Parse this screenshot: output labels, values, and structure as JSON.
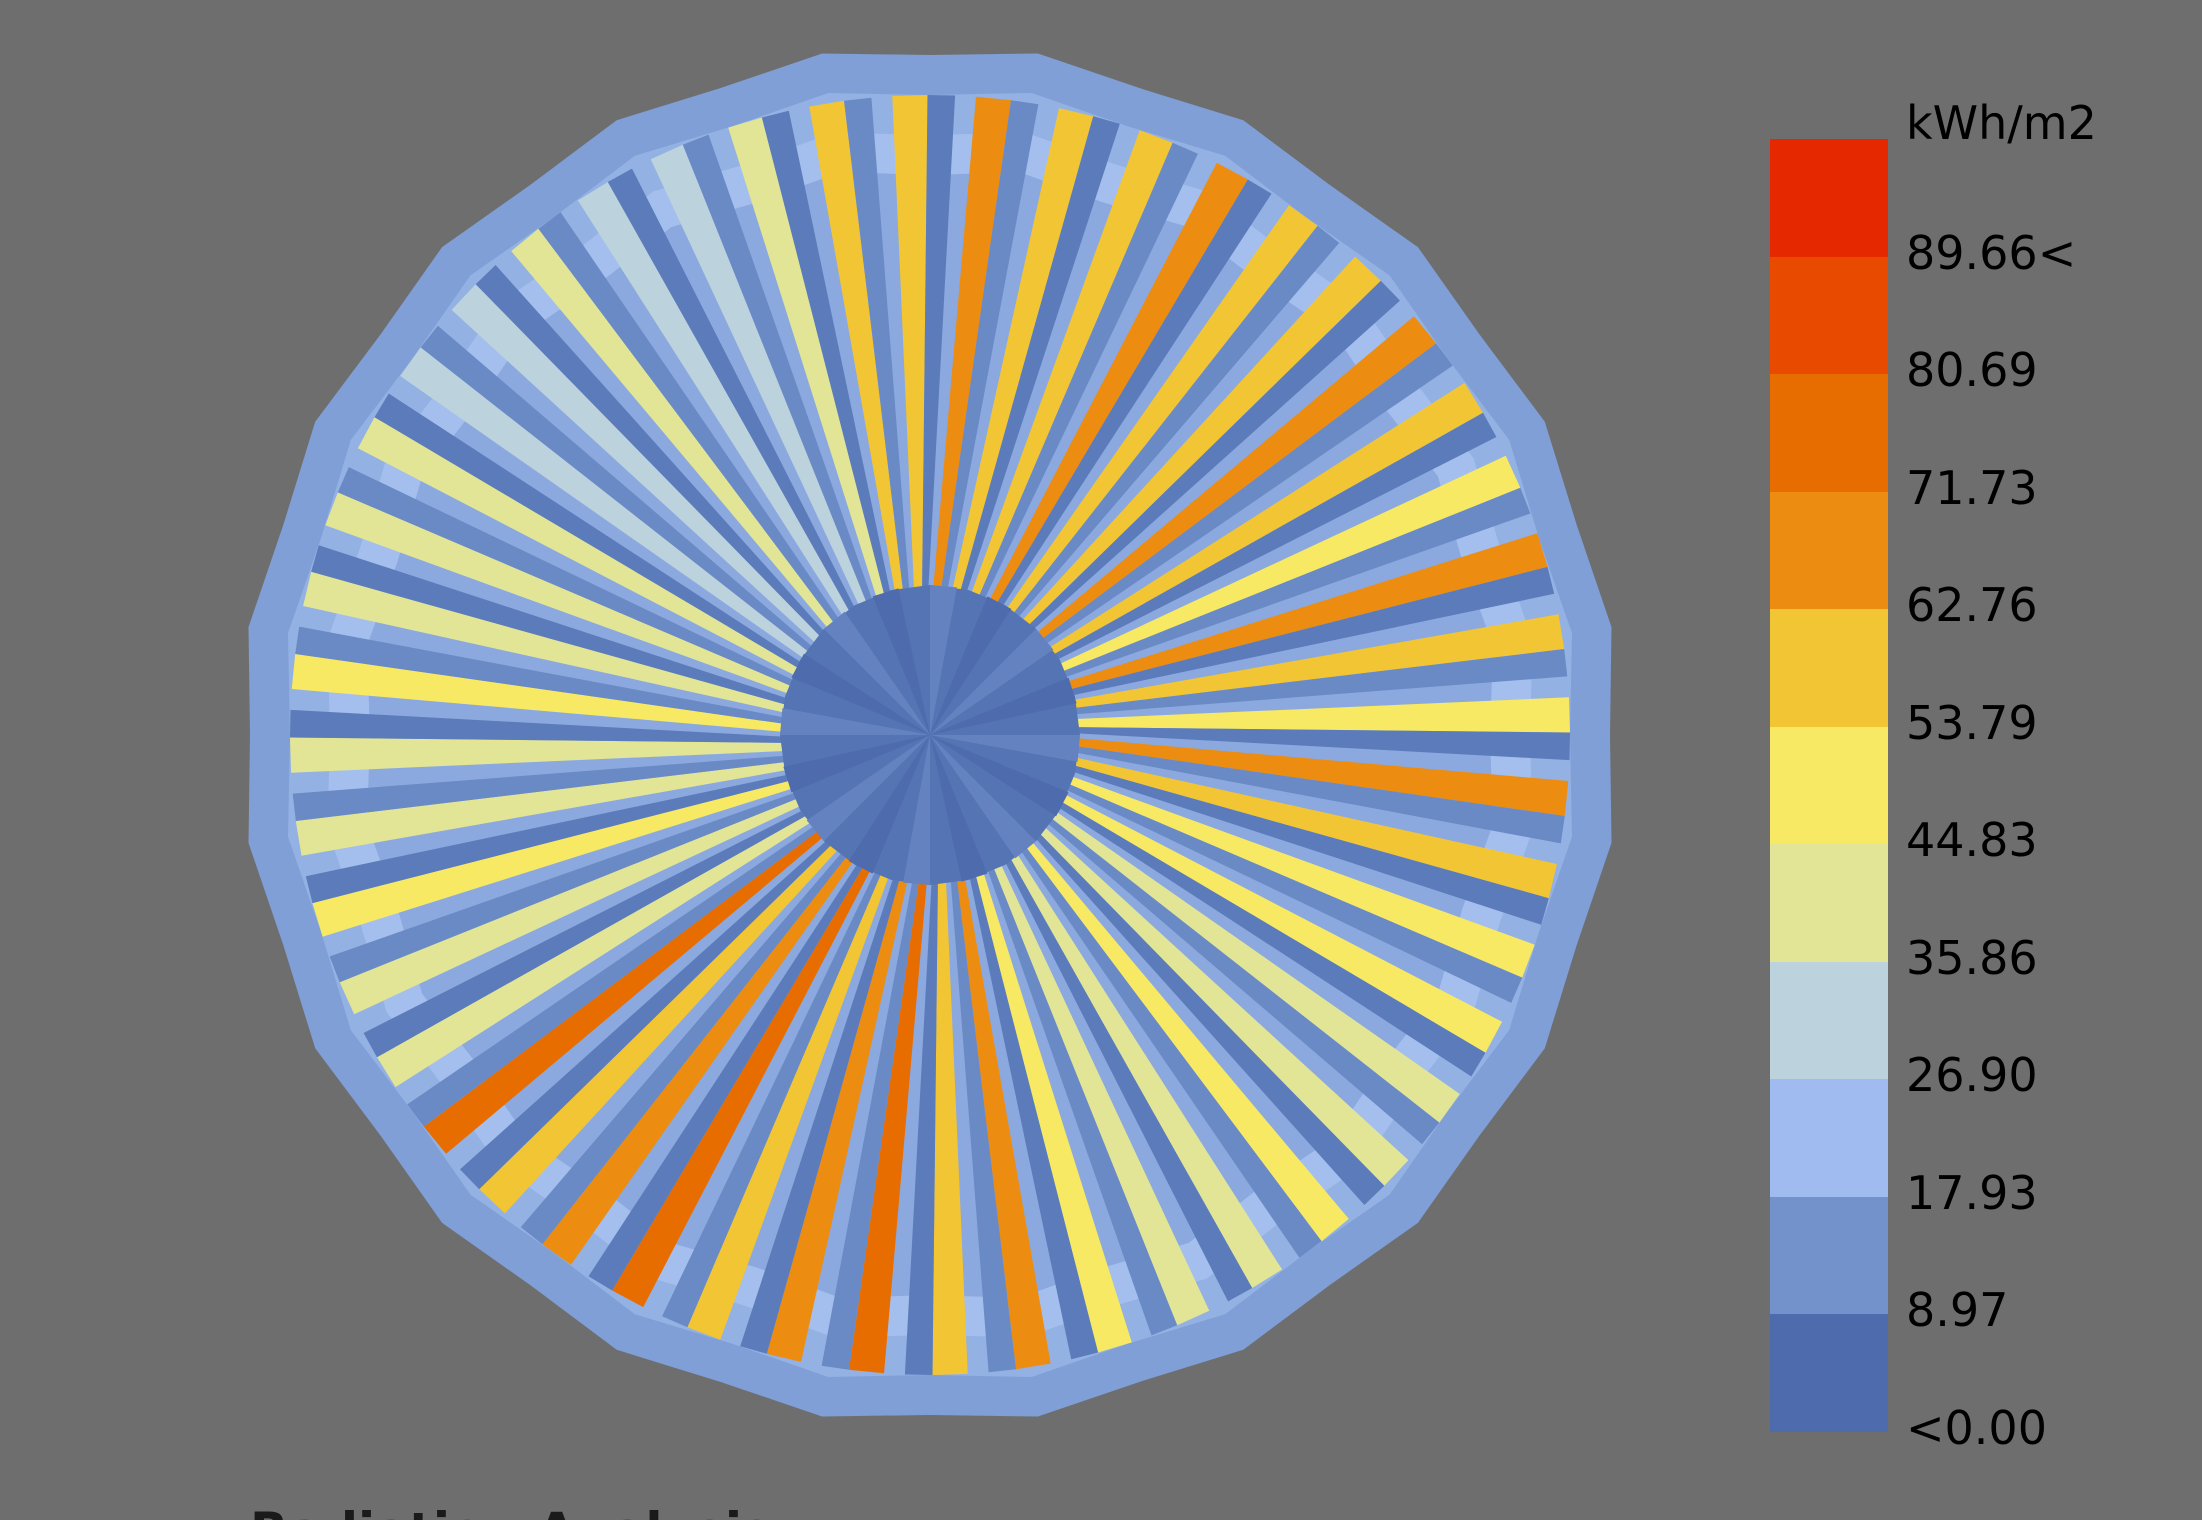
{
  "legend": {
    "unit": "kWh/m2",
    "labels": [
      "89.66<",
      "80.69",
      "71.73",
      "62.76",
      "53.79",
      "44.83",
      "35.86",
      "26.90",
      "17.93",
      "8.97",
      "<0.00"
    ],
    "colors": [
      "#e62800",
      "#e84a00",
      "#e86d00",
      "#ec8c10",
      "#f2c535",
      "#f7e963",
      "#e2e595",
      "#bcd2dc",
      "#a0bbef",
      "#7391ca",
      "#4e6cad"
    ]
  },
  "caption": "Radiation Analysis",
  "colors": {
    "background": "#6e6e6e",
    "structure_blue": "#5b7bba",
    "light_blue": "#93b1e3"
  }
}
